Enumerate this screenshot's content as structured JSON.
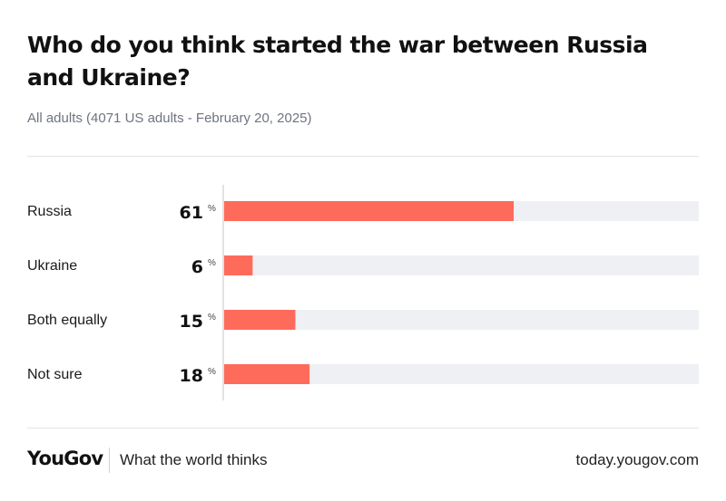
{
  "header": {
    "title": "Who do you think started the war between Russia and Ukraine?",
    "subtitle": "All adults (4071 US adults - February 20, 2025)"
  },
  "chart_data": {
    "type": "bar",
    "orientation": "horizontal",
    "categories": [
      "Russia",
      "Ukraine",
      "Both equally",
      "Not sure"
    ],
    "values": [
      61,
      6,
      15,
      18
    ],
    "unit": "%",
    "xlim": [
      0,
      100
    ],
    "colors": {
      "bar": "#ff6b5b",
      "track": "#eef0f3",
      "axis": "#d6d8dc"
    }
  },
  "footer": {
    "logo": "YouGov",
    "tagline": "What the world thinks",
    "url": "today.yougov.com"
  }
}
